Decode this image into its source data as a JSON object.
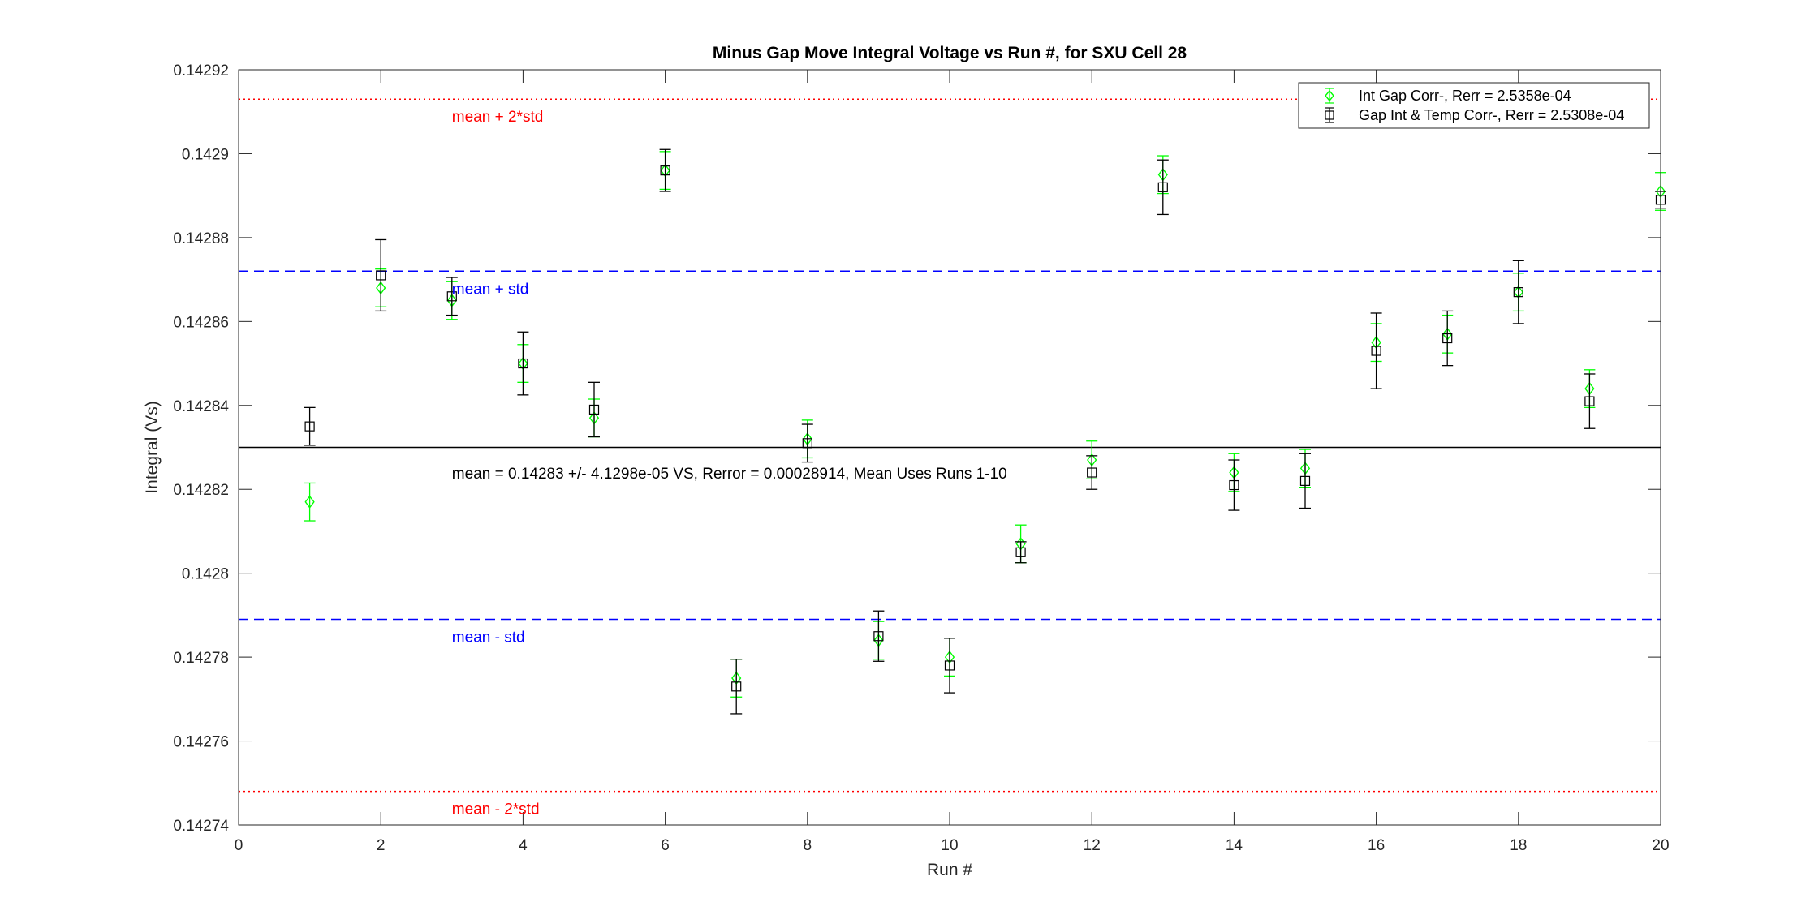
{
  "chart_data": {
    "type": "scatter",
    "title": "Minus Gap Move Integral Voltage vs Run #, for SXU Cell 28",
    "xlabel": "Run #",
    "ylabel": "Integral (Vs)",
    "xlim": [
      0,
      20
    ],
    "ylim": [
      0.14274,
      0.14292
    ],
    "xticks": [
      0,
      2,
      4,
      6,
      8,
      10,
      12,
      14,
      16,
      18,
      20
    ],
    "xtick_labels": [
      "0",
      "2",
      "4",
      "6",
      "8",
      "10",
      "12",
      "14",
      "16",
      "18",
      "20"
    ],
    "yticks": [
      0.14274,
      0.14276,
      0.14278,
      0.1428,
      0.14282,
      0.14284,
      0.14286,
      0.14288,
      0.1429,
      0.14292
    ],
    "ytick_labels": [
      "0.14274",
      "0.14276",
      "0.14278",
      "0.1428",
      "0.14282",
      "0.14284",
      "0.14286",
      "0.14288",
      "0.1429",
      "0.14292"
    ],
    "grid": false,
    "legend_position": "top-right",
    "series": [
      {
        "name": "Int Gap Corr-, Rerr = 2.5358e-04",
        "color": "#00ff00",
        "marker": "diamond",
        "x": [
          1,
          2,
          3,
          4,
          5,
          6,
          7,
          8,
          9,
          10,
          11,
          12,
          13,
          14,
          15,
          16,
          17,
          18,
          19,
          20
        ],
        "y": [
          0.142817,
          0.142868,
          0.142865,
          0.14285,
          0.142837,
          0.142896,
          0.142775,
          0.142832,
          0.142784,
          0.14278,
          0.142807,
          0.142827,
          0.142895,
          0.142824,
          0.142825,
          0.142855,
          0.142857,
          0.142867,
          0.142844,
          0.142891
        ],
        "err": [
          4.5e-06,
          4.5e-06,
          4.5e-06,
          4.5e-06,
          4.5e-06,
          4.5e-06,
          4.5e-06,
          4.5e-06,
          4.5e-06,
          4.5e-06,
          4.5e-06,
          4.5e-06,
          4.5e-06,
          4.5e-06,
          4.5e-06,
          4.5e-06,
          4.5e-06,
          4.5e-06,
          4.5e-06,
          4.5e-06
        ]
      },
      {
        "name": "Gap Int & Temp Corr-, Rerr = 2.5308e-04",
        "color": "#000000",
        "marker": "square",
        "x": [
          1,
          2,
          3,
          4,
          5,
          6,
          7,
          8,
          9,
          10,
          11,
          12,
          13,
          14,
          15,
          16,
          17,
          18,
          19,
          20
        ],
        "y": [
          0.142835,
          0.142871,
          0.142866,
          0.14285,
          0.142839,
          0.142896,
          0.142773,
          0.142831,
          0.142785,
          0.142778,
          0.142805,
          0.142824,
          0.142892,
          0.142821,
          0.142822,
          0.142853,
          0.142856,
          0.142867,
          0.142841,
          0.142889
        ],
        "err": [
          4.5e-06,
          8.5e-06,
          4.5e-06,
          7.5e-06,
          6.5e-06,
          5e-06,
          6.5e-06,
          4.5e-06,
          6e-06,
          6.5e-06,
          2.5e-06,
          4e-06,
          6.5e-06,
          6e-06,
          6.5e-06,
          9e-06,
          6.5e-06,
          7.5e-06,
          6.5e-06,
          2e-06
        ]
      }
    ],
    "reference_lines": [
      {
        "y": 0.142913,
        "label": "mean + 2*std",
        "color": "#ff0000",
        "style": "dotted",
        "label_x": 3
      },
      {
        "y": 0.142872,
        "label": "mean + std",
        "color": "#0000ff",
        "style": "dashed",
        "label_x": 3
      },
      {
        "y": 0.14283,
        "label": "",
        "color": "#000000",
        "style": "solid",
        "label_x": 3
      },
      {
        "y": 0.142789,
        "label": "mean - std",
        "color": "#0000ff",
        "style": "dashed",
        "label_x": 3
      },
      {
        "y": 0.142748,
        "label": "mean - 2*std",
        "color": "#ff0000",
        "style": "dotted",
        "label_x": 3
      }
    ],
    "annotation": {
      "text": "mean = 0.14283 +/- 4.1298e-05 VS, Rerror = 0.00028914, Mean Uses Runs 1-10",
      "x": 3,
      "y": 0.142826
    }
  }
}
